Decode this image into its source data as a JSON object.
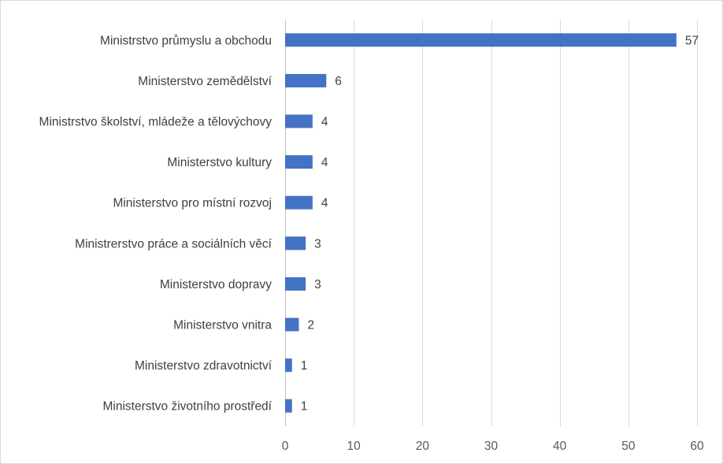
{
  "chart_data": {
    "type": "bar",
    "orientation": "horizontal",
    "categories": [
      "Ministrstvo průmyslu a obchodu",
      "Ministerstvo zemědělství",
      "Ministrstvo školství, mládeže a tělovýchovy",
      "Ministerstvo kultury",
      "Ministerstvo pro místní rozvoj",
      "Ministrerstvo práce a sociálních věcí",
      "Ministerstvo dopravy",
      "Ministerstvo vnitra",
      "Ministerstvo zdravotnictví",
      "Ministerstvo životního prostředí"
    ],
    "values": [
      57,
      6,
      4,
      4,
      4,
      3,
      3,
      2,
      1,
      1
    ],
    "x_ticks": [
      0,
      10,
      20,
      30,
      40,
      50,
      60
    ],
    "xlim": [
      0,
      60
    ],
    "title": "",
    "xlabel": "",
    "ylabel": "",
    "grid": "vertical",
    "legend": "none",
    "data_labels": true,
    "bar_color": "#4472c4"
  }
}
